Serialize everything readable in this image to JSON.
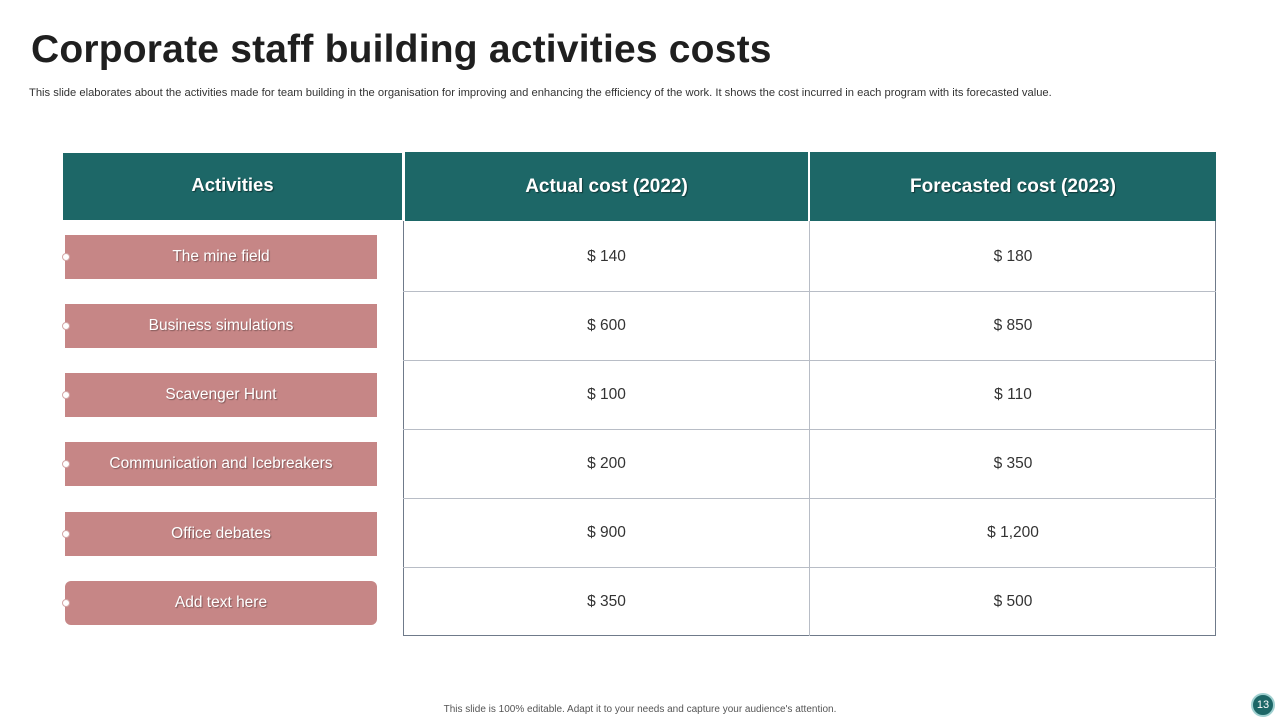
{
  "slide": {
    "title": "Corporate staff building activities costs",
    "subtitle": "This slide elaborates about the activities made for team building in the organisation for improving and enhancing the efficiency of the work. It shows the cost incurred in each program with its forecasted value.",
    "footer": "This slide is 100% editable. Adapt it to your needs and capture your audience's attention.",
    "page_number": "13"
  },
  "table": {
    "headers": {
      "activities": "Activities",
      "actual": "Actual cost (2022)",
      "forecast": "Forecasted cost (2023)"
    },
    "rows": [
      {
        "activity": "The mine field",
        "actual": "$ 140",
        "forecast": "$ 180"
      },
      {
        "activity": "Business simulations",
        "actual": "$ 600",
        "forecast": "$ 850"
      },
      {
        "activity": "Scavenger Hunt",
        "actual": "$ 100",
        "forecast": "$ 110"
      },
      {
        "activity": "Communication and Icebreakers",
        "actual": "$ 200",
        "forecast": "$ 350"
      },
      {
        "activity": "Office debates",
        "actual": "$ 900",
        "forecast": "$ 1,200"
      },
      {
        "activity": "Add text here",
        "actual": "$ 350",
        "forecast": "$ 500"
      }
    ]
  },
  "colors": {
    "header_bg": "#1d6767",
    "pill_bg": "#c68686",
    "grid_line": "#b8bdc6"
  }
}
